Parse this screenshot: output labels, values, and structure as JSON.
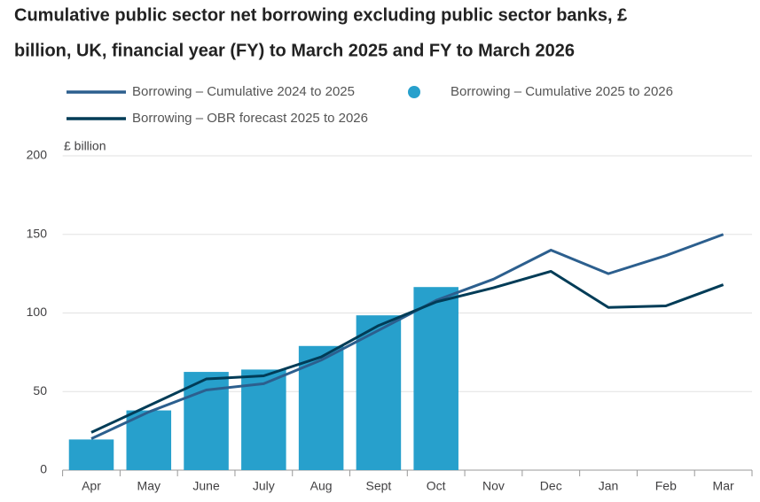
{
  "chart_data": {
    "type": "combo",
    "title_lines": [
      "Cumulative public sector net borrowing excluding public sector banks, £",
      "billion, UK, financial year (FY) to March 2025 and FY to March 2026"
    ],
    "y_axis_label": "£ billion",
    "categories": [
      "Apr",
      "May",
      "June",
      "July",
      "Aug",
      "Sept",
      "Oct",
      "Nov",
      "Dec",
      "Jan",
      "Feb",
      "Mar"
    ],
    "series": [
      {
        "name": "Borrowing – Cumulative 2024 to 2025",
        "type": "line",
        "color": "#2c5f8e",
        "values": [
          20,
          37,
          51,
          55,
          70,
          89,
          108,
          121.5,
          140,
          125,
          136.5,
          150
        ]
      },
      {
        "name": "Borrowing – Cumulative 2025 to 2026",
        "type": "bar",
        "color": "#27a0cc",
        "values": [
          19.5,
          38,
          62.5,
          64,
          79,
          98.5,
          116.5,
          null,
          null,
          null,
          null,
          null
        ]
      },
      {
        "name": "Borrowing – OBR forecast 2025 to 2026",
        "type": "line",
        "color": "#003c57",
        "values": [
          24,
          41,
          58,
          60,
          72,
          92,
          107,
          116,
          126.5,
          103.5,
          104.5,
          118
        ]
      }
    ],
    "ylim": [
      0,
      200
    ],
    "yticks": [
      0,
      50,
      100,
      150,
      200
    ],
    "grid": true
  }
}
